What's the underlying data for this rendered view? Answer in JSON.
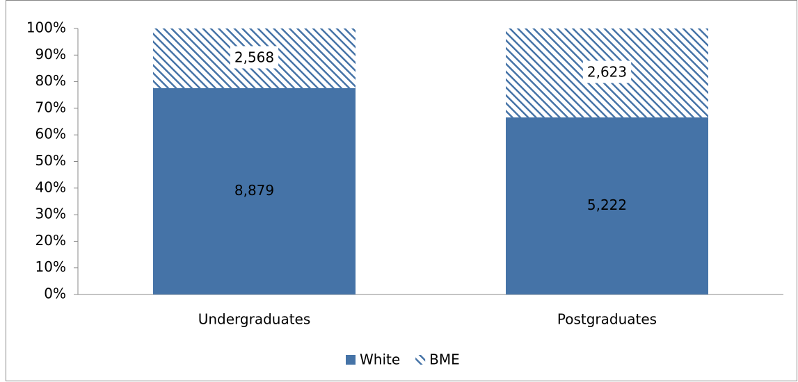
{
  "chart_data": {
    "type": "bar",
    "stacking": "percent",
    "categories": [
      "Undergraduates",
      "Postgraduates"
    ],
    "series": [
      {
        "name": "White",
        "color": "#4573a7",
        "pattern": "solid",
        "values": [
          8879,
          5222
        ],
        "value_labels": [
          "8,879",
          "5,222"
        ]
      },
      {
        "name": "BME",
        "color": "#4573a7",
        "pattern": "hatch",
        "values": [
          2568,
          2623
        ],
        "value_labels": [
          "2,568",
          "2,623"
        ]
      }
    ],
    "ylim": [
      0,
      100
    ],
    "yticks": [
      {
        "value": 0,
        "label": "0%"
      },
      {
        "value": 10,
        "label": "10%"
      },
      {
        "value": 20,
        "label": "20%"
      },
      {
        "value": 30,
        "label": "30%"
      },
      {
        "value": 40,
        "label": "40%"
      },
      {
        "value": 50,
        "label": "50%"
      },
      {
        "value": 60,
        "label": "60%"
      },
      {
        "value": 70,
        "label": "70%"
      },
      {
        "value": 80,
        "label": "80%"
      },
      {
        "value": 90,
        "label": "90%"
      },
      {
        "value": 100,
        "label": "100%"
      }
    ],
    "legend": "bottom"
  }
}
